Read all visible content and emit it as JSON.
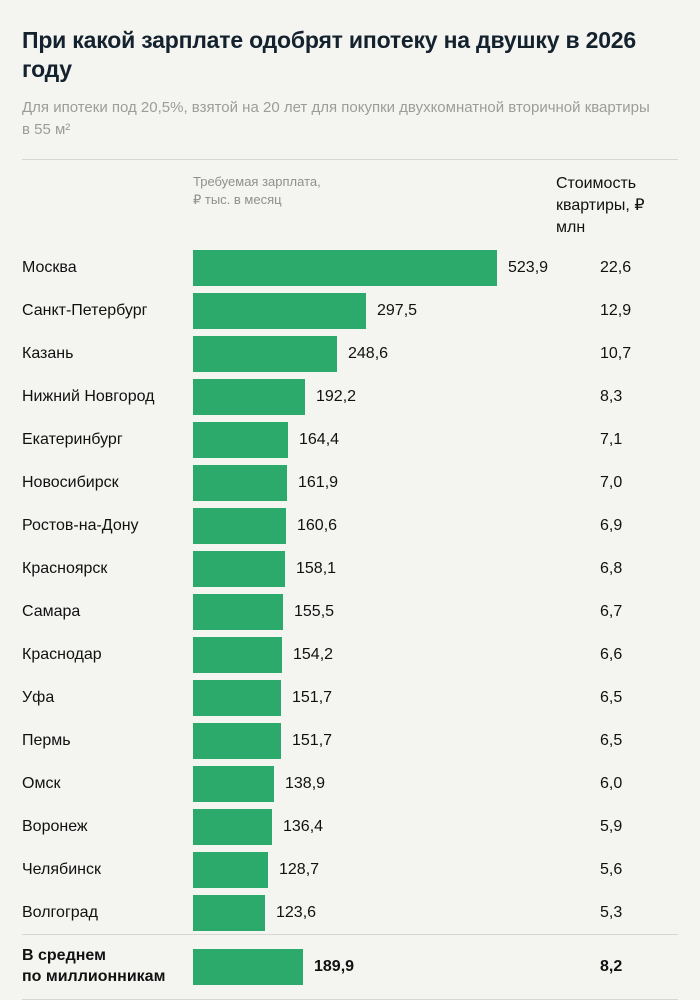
{
  "header": {
    "title": "При какой зарплате одобрят ипотеку на двушку в 2026 году",
    "subtitle": "Для ипотеки под 20,5%, взятой на 20 лет для покупки двухкомнатной вторичной квартиры в 55 м²"
  },
  "columns": {
    "salary": "Требуемая зарплата,\n₽ тыс. в месяц",
    "price": "Стоимость\nквартиры, ₽ млн"
  },
  "chart_data": {
    "type": "bar",
    "orientation": "horizontal",
    "title": "При какой зарплате одобрят ипотеку на двушку в 2026 году",
    "value_axis_label": "Требуемая зарплата, ₽ тыс. в месяц",
    "secondary_column_label": "Стоимость квартиры, ₽ млн",
    "bar_color": "#2caa6b",
    "xlim": [
      0,
      523.9
    ],
    "rows": [
      {
        "city": "Москва",
        "salary": 523.9,
        "salary_label": "523,9",
        "price_label": "22,6"
      },
      {
        "city": "Санкт-Петербург",
        "salary": 297.5,
        "salary_label": "297,5",
        "price_label": "12,9"
      },
      {
        "city": "Казань",
        "salary": 248.6,
        "salary_label": "248,6",
        "price_label": "10,7"
      },
      {
        "city": "Нижний Новгород",
        "salary": 192.2,
        "salary_label": "192,2",
        "price_label": "8,3"
      },
      {
        "city": "Екатеринбург",
        "salary": 164.4,
        "salary_label": "164,4",
        "price_label": "7,1"
      },
      {
        "city": "Новосибирск",
        "salary": 161.9,
        "salary_label": "161,9",
        "price_label": "7,0"
      },
      {
        "city": "Ростов-на-Дону",
        "salary": 160.6,
        "salary_label": "160,6",
        "price_label": "6,9"
      },
      {
        "city": "Красноярск",
        "salary": 158.1,
        "salary_label": "158,1",
        "price_label": "6,8"
      },
      {
        "city": "Самара",
        "salary": 155.5,
        "salary_label": "155,5",
        "price_label": "6,7"
      },
      {
        "city": "Краснодар",
        "salary": 154.2,
        "salary_label": "154,2",
        "price_label": "6,6"
      },
      {
        "city": "Уфа",
        "salary": 151.7,
        "salary_label": "151,7",
        "price_label": "6,5"
      },
      {
        "city": "Пермь",
        "salary": 151.7,
        "salary_label": "151,7",
        "price_label": "6,5"
      },
      {
        "city": "Омск",
        "salary": 138.9,
        "salary_label": "138,9",
        "price_label": "6,0"
      },
      {
        "city": "Воронеж",
        "salary": 136.4,
        "salary_label": "136,4",
        "price_label": "5,9"
      },
      {
        "city": "Челябинск",
        "salary": 128.7,
        "salary_label": "128,7",
        "price_label": "5,6"
      },
      {
        "city": "Волгоград",
        "salary": 123.6,
        "salary_label": "123,6",
        "price_label": "5,3"
      }
    ],
    "average": {
      "label": "В среднем\nпо миллионникам",
      "salary": 189.9,
      "salary_label": "189,9",
      "price_label": "8,2"
    }
  }
}
